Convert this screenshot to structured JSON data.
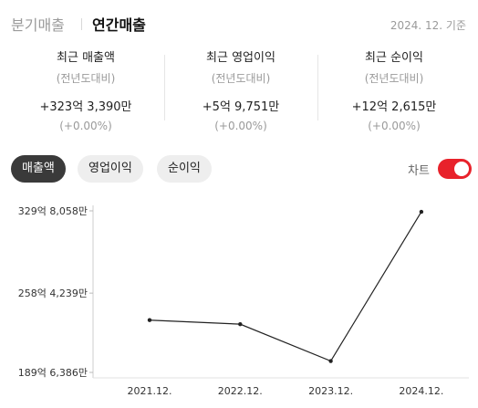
{
  "header": {
    "tabs": [
      {
        "label": "분기매출",
        "active": false
      },
      {
        "label": "연간매출",
        "active": true
      }
    ],
    "date": "2024. 12. 기준"
  },
  "stats": [
    {
      "title": "최근 매출액",
      "sub": "(전년도대비)",
      "value": "+323억 3,390만",
      "pct": "(+0.00%)"
    },
    {
      "title": "최근 영업이익",
      "sub": "(전년도대비)",
      "value": "+5억 9,751만",
      "pct": "(+0.00%)"
    },
    {
      "title": "최근 순이익",
      "sub": "(전년도대비)",
      "value": "+12억 2,615만",
      "pct": "(+0.00%)"
    }
  ],
  "filters": {
    "chips": [
      "매출액",
      "영업이익",
      "순이익"
    ],
    "active": "매출액",
    "chart_toggle_label": "차트",
    "chart_toggle_on": true
  },
  "colors": {
    "accent": "#e8222b",
    "active_chip": "#3a3a3a",
    "line": "#222222"
  },
  "chart_data": {
    "type": "line",
    "x": [
      "2021.12.",
      "2022.12.",
      "2023.12.",
      "2024.12."
    ],
    "series": [
      {
        "values": [
          23500000000,
          23150000000,
          19950000000,
          32900000000
        ]
      }
    ],
    "ytick_values": [
      18963860000,
      25842390000,
      32980580000
    ],
    "ytick_labels": [
      "189억 6,386만",
      "258억 4,239만",
      "329억 8,058만"
    ],
    "ylim": [
      18963860000,
      32980580000
    ],
    "xlabel": "",
    "ylabel": "",
    "grid": false
  }
}
